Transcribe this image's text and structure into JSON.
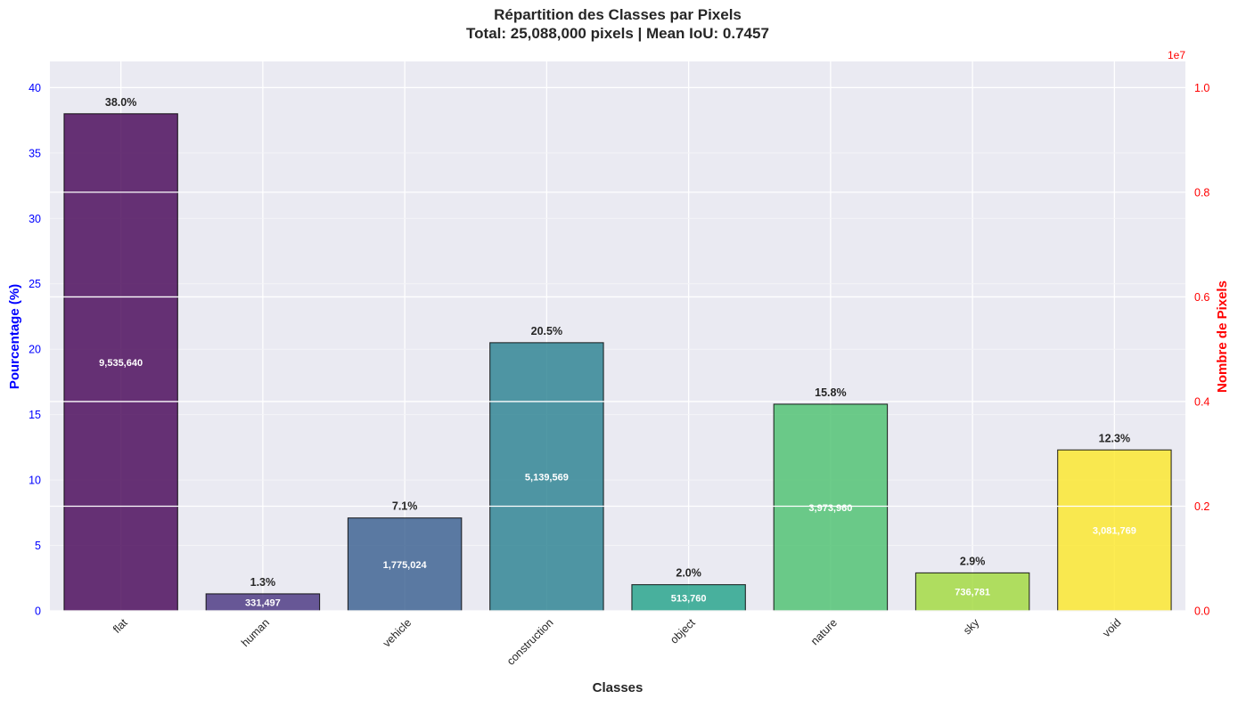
{
  "chart_data": {
    "type": "bar",
    "title": "Répartition des Classes par Pixels",
    "subtitle": "Total: 25,088,000 pixels | Mean IoU: 0.7457",
    "xlabel": "Classes",
    "ylabel_left": "Pourcentage (%)",
    "ylabel_right": "Nombre de Pixels",
    "right_axis_multiplier": "1e7",
    "categories": [
      "flat",
      "human",
      "vehicle",
      "construction",
      "object",
      "nature",
      "sky",
      "void"
    ],
    "percent_values": [
      38.0,
      1.3,
      7.1,
      20.5,
      2.0,
      15.8,
      2.9,
      12.3
    ],
    "percent_labels": [
      "38.0%",
      "1.3%",
      "7.1%",
      "20.5%",
      "2.0%",
      "15.8%",
      "2.9%",
      "12.3%"
    ],
    "pixel_counts": [
      9535640,
      331497,
      1775024,
      5139569,
      513760,
      3973960,
      736781,
      3081769
    ],
    "pixel_labels": [
      "9,535,640",
      "331,497",
      "1,775,024",
      "5,139,569",
      "513,760",
      "3,973,960",
      "736,781",
      "3,081,769"
    ],
    "bar_colors": [
      "#440154",
      "#46327e",
      "#365c8d",
      "#277f8e",
      "#1fa187",
      "#4ac16d",
      "#a0da39",
      "#fde725"
    ],
    "ylim_left": [
      0,
      42
    ],
    "yticks_left": [
      "0",
      "5",
      "10",
      "15",
      "20",
      "25",
      "30",
      "35",
      "40"
    ],
    "ylim_right": [
      0,
      1.05
    ],
    "yticks_right": [
      "0.0",
      "0.2",
      "0.4",
      "0.6",
      "0.8",
      "1.0"
    ],
    "grid": true,
    "left_axis_color": "#0000ff",
    "right_axis_color": "#ff0000",
    "plot_background": "#eaeaf2"
  }
}
